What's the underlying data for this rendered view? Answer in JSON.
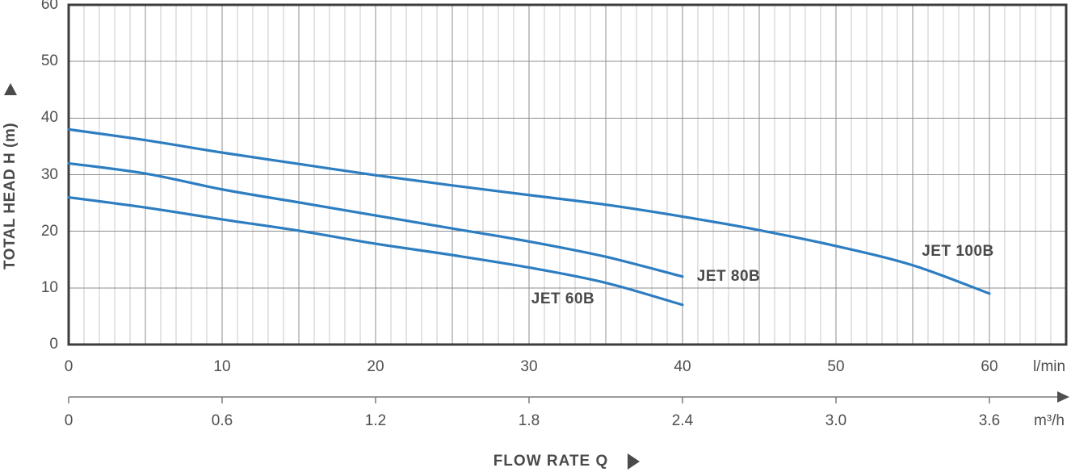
{
  "chart_data": {
    "type": "line",
    "xlabel": "FLOW RATE Q",
    "ylabel": "TOTAL HEAD H (m)",
    "grid": true,
    "legend_position": "inline-curve-labels",
    "x_axis_primary": {
      "unit": "l/min",
      "ticks": [
        0,
        10,
        20,
        30,
        40,
        50,
        60
      ],
      "range": [
        0,
        65
      ],
      "minor_step": 1,
      "major_step": 5
    },
    "x_axis_secondary": {
      "unit": "m³/h",
      "ticks": [
        "0",
        "0.6",
        "1.2",
        "1.8",
        "2.4",
        "3.0",
        "3.6"
      ],
      "tick_spacing_lmin": 10
    },
    "y_axis": {
      "ticks": [
        0,
        10,
        20,
        30,
        40,
        50,
        60
      ],
      "range": [
        0,
        60
      ]
    },
    "line_color": "#2d7dc1",
    "text_color": "#4f4f4f",
    "series": [
      {
        "name": "JET 60B",
        "x_unit": "l/min",
        "points": [
          [
            0,
            26
          ],
          [
            5,
            24.2
          ],
          [
            10,
            22.1
          ],
          [
            15,
            20.1
          ],
          [
            20,
            17.8
          ],
          [
            25,
            15.8
          ],
          [
            30,
            13.6
          ],
          [
            35,
            10.9
          ],
          [
            40,
            7
          ]
        ]
      },
      {
        "name": "JET 80B",
        "x_unit": "l/min",
        "points": [
          [
            0,
            32
          ],
          [
            5,
            30.2
          ],
          [
            10,
            27.4
          ],
          [
            15,
            25.1
          ],
          [
            20,
            22.8
          ],
          [
            25,
            20.5
          ],
          [
            30,
            18.2
          ],
          [
            35,
            15.5
          ],
          [
            40,
            12
          ]
        ]
      },
      {
        "name": "JET 100B",
        "x_unit": "l/min",
        "points": [
          [
            0,
            38
          ],
          [
            5,
            36.1
          ],
          [
            10,
            33.9
          ],
          [
            15,
            31.9
          ],
          [
            20,
            29.9
          ],
          [
            25,
            28.1
          ],
          [
            30,
            26.4
          ],
          [
            35,
            24.7
          ],
          [
            40,
            22.6
          ],
          [
            45,
            20.2
          ],
          [
            50,
            17.4
          ],
          [
            55,
            14
          ],
          [
            60,
            9
          ]
        ]
      }
    ]
  }
}
